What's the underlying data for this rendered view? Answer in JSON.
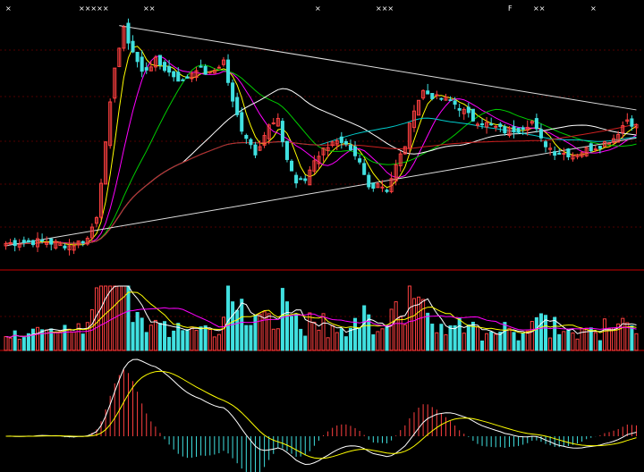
{
  "top_markers": [
    "×",
    "×××××",
    "××",
    "×",
    "×××",
    "F",
    "××",
    "×"
  ],
  "colors": {
    "background": "#000000",
    "up_candle": "#ff4040",
    "down_candle": "#40e0e0",
    "ma5": "#ffffff",
    "ma10": "#ffff00",
    "ma20": "#ff00ff",
    "ma30": "#00cc00",
    "ma60": "#ffffff",
    "ma120": "#00cccc",
    "ma250": "#cc2020",
    "trend_line": "#dddddd",
    "panel_border": "#a00000",
    "grid": "#a00000"
  },
  "chart_data": [
    {
      "type": "candlestick",
      "panel": "price",
      "title": "",
      "x_count": 140,
      "ylim": [
        0,
        100
      ],
      "grid": true,
      "legend": "none",
      "series": [
        {
          "key": "ma_fast",
          "color": "#ffff00"
        },
        {
          "key": "ma_mid",
          "color": "#ff00ff"
        },
        {
          "key": "ma_slow",
          "color": "#00cc00"
        },
        {
          "key": "ma_long",
          "color": "#ffffff"
        },
        {
          "key": "ma_longer",
          "color": "#00cccc"
        },
        {
          "key": "ma_longest",
          "color": "#cc2020"
        }
      ],
      "trend_lines": [
        {
          "from": [
            25,
            99
          ],
          "to": [
            140,
            63
          ]
        },
        {
          "from": [
            0,
            5
          ],
          "to": [
            140,
            51
          ]
        }
      ]
    },
    {
      "type": "bar",
      "panel": "volume",
      "title": "",
      "x_count": 140,
      "ylim": [
        0,
        100
      ],
      "grid": true
    },
    {
      "type": "bar",
      "panel": "macd",
      "title": "",
      "x_count": 140,
      "ylim": [
        -100,
        100
      ],
      "grid": false
    }
  ]
}
